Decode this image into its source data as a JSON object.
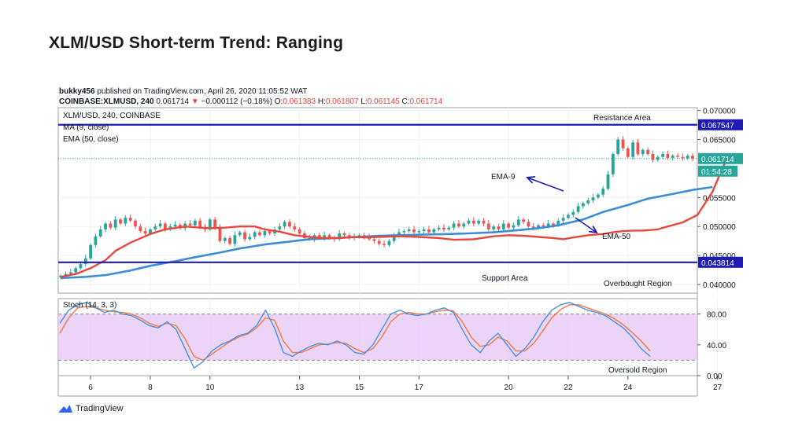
{
  "page_title": "XLM/USD Short-term Trend: Ranging",
  "header": {
    "author": "bukky456",
    "published_text": "published on TradingView.com, April 26, 2020 11:05:52 WAT",
    "symbol_line": "COINBASE:XLMUSD, 240",
    "last_price": "0.061714",
    "change": "−0.000112 (−0.18%)",
    "open_label": "O:",
    "open": "0.061383",
    "high_label": "H:",
    "high": "0.061807",
    "low_label": "L:",
    "low": "0.061145",
    "close_label": "C:",
    "close": "0.061714"
  },
  "footer": {
    "brand": "TradingView"
  },
  "colors": {
    "up": "#26a69a",
    "down": "#ef5350",
    "ma9": "#e8473b",
    "ema50": "#3c8dd6",
    "level_line": "#1f1bb5",
    "stoch_k": "#4a90e2",
    "stoch_d": "#f07a3c",
    "stoch_band": "#e6c6f5",
    "price_tag": "#26a69a"
  },
  "chart_data": [
    {
      "type": "candlestick",
      "legend": {
        "pair": "XLM/USD, 240, COINBASE",
        "ma": "MA (9, close)",
        "ema": "EMA (50, close)"
      },
      "y_ticks": [
        "0.070000",
        "0.065000",
        "0.055000",
        "0.050000",
        "0.045000",
        "0.040000"
      ],
      "ylim": [
        0.0385,
        0.0705
      ],
      "x_ticks": [
        "6",
        "8",
        "10",
        "13",
        "15",
        "17",
        "20",
        "22",
        "24",
        "27"
      ],
      "x_tick_index": [
        6,
        18,
        30,
        48,
        60,
        72,
        90,
        102,
        114,
        132
      ],
      "levels": [
        {
          "value": 0.067547,
          "label": "0.067547",
          "annotation": "Resistance Area"
        },
        {
          "value": 0.043814,
          "label": "0.043814",
          "annotation": "Support Area"
        }
      ],
      "price_tag": {
        "value": 0.061714,
        "label": "0.061714",
        "countdown": "01:54:28"
      },
      "annotations": [
        "EMA-9",
        "EMA-50",
        "Overbought Region"
      ],
      "closes": [
        0.0415,
        0.0418,
        0.0421,
        0.0428,
        0.0435,
        0.0445,
        0.0468,
        0.0483,
        0.0495,
        0.0505,
        0.0498,
        0.0512,
        0.0505,
        0.0515,
        0.051,
        0.05,
        0.0492,
        0.0488,
        0.0495,
        0.05,
        0.0505,
        0.0495,
        0.05,
        0.0503,
        0.0497,
        0.0505,
        0.0502,
        0.051,
        0.0498,
        0.0495,
        0.0512,
        0.0498,
        0.0475,
        0.048,
        0.047,
        0.0485,
        0.049,
        0.0478,
        0.0482,
        0.049,
        0.0485,
        0.0492,
        0.0488,
        0.0495,
        0.05,
        0.0508,
        0.05,
        0.0495,
        0.0488,
        0.048,
        0.0478,
        0.0485,
        0.048,
        0.0485,
        0.048,
        0.0478,
        0.0488,
        0.0485,
        0.048,
        0.0482,
        0.0485,
        0.0482,
        0.0478,
        0.0475,
        0.047,
        0.0468,
        0.0475,
        0.0485,
        0.049,
        0.0492,
        0.0495,
        0.049,
        0.0492,
        0.0495,
        0.049,
        0.0495,
        0.0498,
        0.0495,
        0.0498,
        0.0505,
        0.05,
        0.0505,
        0.051,
        0.0505,
        0.051,
        0.0505,
        0.0495,
        0.05,
        0.0495,
        0.0505,
        0.0498,
        0.0502,
        0.0512,
        0.0508,
        0.05,
        0.0498,
        0.0502,
        0.05,
        0.0505,
        0.0502,
        0.051,
        0.0515,
        0.052,
        0.0525,
        0.0535,
        0.054,
        0.0545,
        0.055,
        0.0555,
        0.0565,
        0.059,
        0.0625,
        0.065,
        0.0635,
        0.062,
        0.0645,
        0.0625,
        0.0632,
        0.0625,
        0.0615,
        0.062,
        0.0625,
        0.0618,
        0.0622,
        0.062,
        0.0618,
        0.0622,
        0.0617
      ],
      "ma9_values": [
        0.0413,
        0.0418,
        0.0428,
        0.0442,
        0.0458,
        0.0472,
        0.0487,
        0.0495,
        0.05,
        0.0498,
        0.0497,
        0.0498,
        0.05,
        0.05,
        0.0495,
        0.0491,
        0.0485,
        0.0482,
        0.048,
        0.048,
        0.0482,
        0.0481,
        0.0482,
        0.0483,
        0.0482,
        0.048,
        0.0477,
        0.0478,
        0.0483,
        0.0485,
        0.0484,
        0.0482,
        0.048,
        0.0478,
        0.0481,
        0.0485,
        0.0487,
        0.049,
        0.0492,
        0.0493,
        0.0493,
        0.0495,
        0.05,
        0.0507,
        0.052,
        0.056,
        0.06,
        0.062,
        0.0625,
        0.0623,
        0.0622,
        0.0621,
        0.062,
        0.0618,
        0.0618
      ],
      "ma9_idx": [
        0,
        3,
        6,
        9,
        11,
        14,
        18,
        21,
        25,
        28,
        30,
        33,
        36,
        39,
        41,
        44,
        47,
        50,
        53,
        56,
        59,
        61,
        64,
        68,
        72,
        76,
        79,
        83,
        87,
        90,
        93,
        96,
        99,
        101,
        103,
        106,
        109,
        111,
        113,
        115,
        117,
        120,
        122,
        125,
        128,
        131,
        133,
        134,
        135,
        134,
        134,
        133,
        133,
        133,
        133
      ],
      "ema50_values": [
        0.0411,
        0.0413,
        0.0416,
        0.0424,
        0.0432,
        0.044,
        0.0447,
        0.0455,
        0.0462,
        0.0469,
        0.0474,
        0.0478,
        0.048,
        0.0482,
        0.0484,
        0.0485,
        0.0486,
        0.0487,
        0.0488,
        0.049,
        0.0493,
        0.0497,
        0.0502,
        0.0512,
        0.0525,
        0.0537,
        0.0548,
        0.0556,
        0.0563,
        0.0568
      ],
      "ema50_idx": [
        0,
        5,
        9,
        14,
        18,
        23,
        27,
        32,
        36,
        41,
        46,
        50,
        55,
        60,
        64,
        68,
        73,
        78,
        82,
        87,
        91,
        96,
        100,
        105,
        109,
        114,
        118,
        123,
        127,
        131
      ]
    },
    {
      "type": "line",
      "legend": "Stoch (14, 3, 3)",
      "y_ticks": [
        "80.00",
        "40.00",
        "0.00"
      ],
      "ylim": [
        0,
        100
      ],
      "band": [
        20,
        80
      ],
      "annotation": "Oversold Region",
      "k_values": [
        68,
        85,
        92,
        95,
        88,
        82,
        85,
        80,
        78,
        72,
        65,
        62,
        70,
        60,
        35,
        10,
        18,
        32,
        40,
        45,
        52,
        55,
        65,
        85,
        62,
        30,
        25,
        32,
        38,
        42,
        40,
        45,
        40,
        30,
        28,
        40,
        60,
        80,
        85,
        80,
        78,
        80,
        85,
        88,
        82,
        60,
        40,
        30,
        45,
        55,
        40,
        25,
        35,
        50,
        70,
        85,
        92,
        95,
        90,
        85,
        82,
        78,
        70,
        62,
        50,
        35,
        25
      ],
      "d_values": [
        55,
        75,
        88,
        90,
        88,
        85,
        83,
        82,
        80,
        75,
        68,
        64,
        68,
        65,
        48,
        25,
        20,
        28,
        36,
        44,
        50,
        54,
        62,
        75,
        72,
        45,
        30,
        30,
        35,
        40,
        41,
        43,
        42,
        35,
        30,
        35,
        50,
        70,
        80,
        82,
        80,
        80,
        83,
        85,
        84,
        70,
        50,
        38,
        40,
        50,
        45,
        32,
        32,
        42,
        58,
        75,
        86,
        92,
        92,
        88,
        84,
        80,
        74,
        66,
        56,
        45,
        32
      ]
    }
  ]
}
